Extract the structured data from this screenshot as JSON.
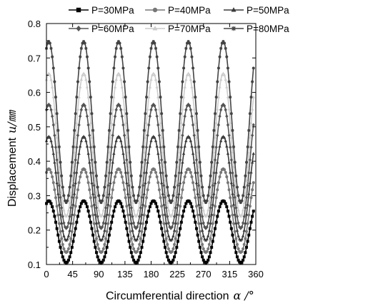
{
  "chart_data": {
    "type": "line",
    "title": "",
    "xlabel": "Circumferential direction",
    "xlabel_symbol": "α /°",
    "ylabel": "Displacement",
    "ylabel_symbol": "u/㎜",
    "xlim": [
      0,
      360
    ],
    "ylim": [
      0.1,
      0.8
    ],
    "x_ticks": [
      "0",
      "45",
      "90",
      "135",
      "180",
      "225",
      "270",
      "315",
      "360"
    ],
    "y_ticks": [
      "0.1",
      "0.2",
      "0.3",
      "0.4",
      "0.5",
      "0.6",
      "0.7",
      "0.8"
    ],
    "grid": false,
    "legend_position": "top",
    "period_deg": 60,
    "first_peak_deg": 4,
    "series": [
      {
        "name": "P=30MPa",
        "max": 0.285,
        "min": 0.105,
        "color": "#000000",
        "marker": "square"
      },
      {
        "name": "P=40MPa",
        "max": 0.378,
        "min": 0.135,
        "color": "#777777",
        "marker": "circle"
      },
      {
        "name": "P=50MPa",
        "max": 0.472,
        "min": 0.17,
        "color": "#3a3a3a",
        "marker": "triangle"
      },
      {
        "name": "P=60MPa",
        "max": 0.565,
        "min": 0.205,
        "color": "#555555",
        "marker": "diamond"
      },
      {
        "name": "P=70MPa",
        "max": 0.655,
        "min": 0.24,
        "color": "#cccccc",
        "marker": "triangle"
      },
      {
        "name": "P=80MPa",
        "max": 0.748,
        "min": 0.28,
        "color": "#444444",
        "marker": "star"
      }
    ]
  }
}
